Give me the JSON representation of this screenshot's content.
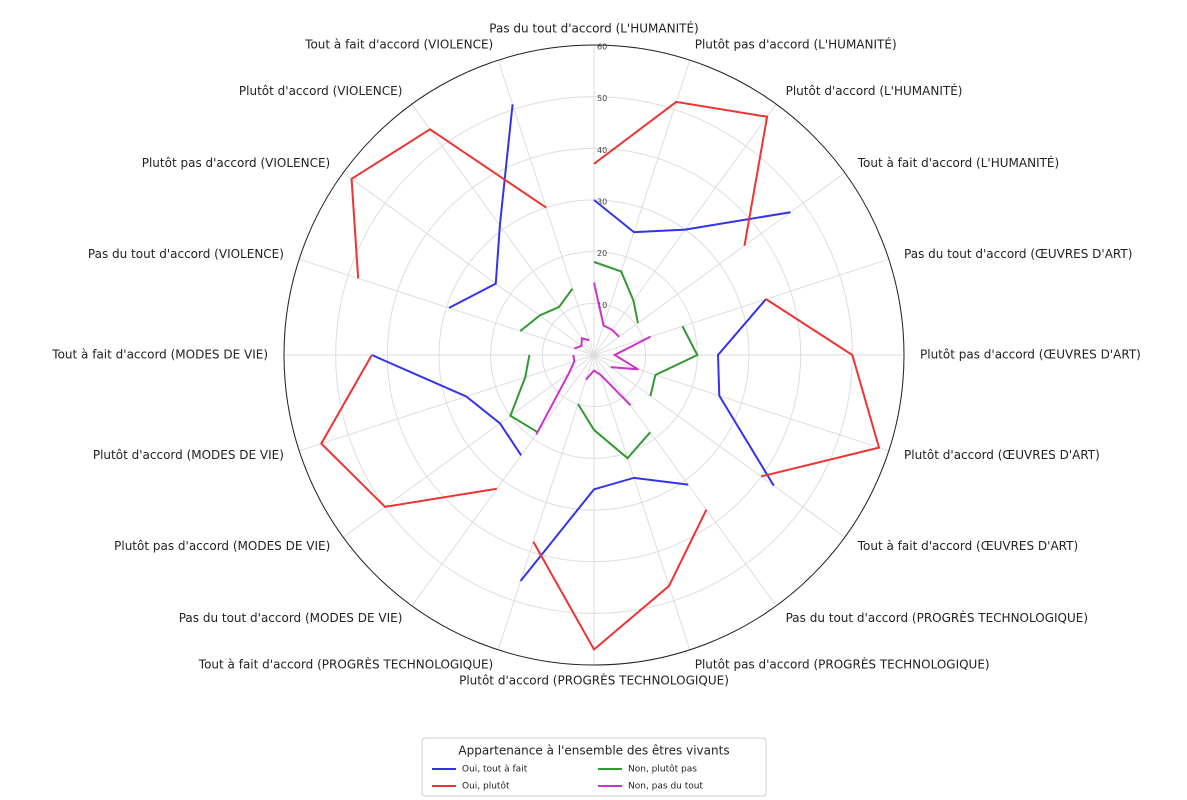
{
  "chart_data": {
    "type": "radar",
    "categories": [
      "Pas du tout d'accord (L'HUMANITÉ)",
      "Plutôt pas d'accord (L'HUMANITÉ)",
      "Plutôt d'accord (L'HUMANITÉ)",
      "Tout à fait d'accord (L'HUMANITÉ)",
      "Pas du tout d'accord (ŒUVRES D'ART)",
      "Plutôt pas d'accord (ŒUVRES D'ART)",
      "Plutôt d'accord (ŒUVRES D'ART)",
      "Tout à fait d'accord (ŒUVRES D'ART)",
      "Pas du tout d'accord (PROGRÈS TECHNOLOGIQUE)",
      "Plutôt pas d'accord (PROGRÈS TECHNOLOGIQUE)",
      "Plutôt d'accord (PROGRÈS TECHNOLOGIQUE)",
      "Tout à fait d'accord (PROGRÈS TECHNOLOGIQUE)",
      "Pas du tout d'accord (MODES DE VIE)",
      "Plutôt pas d'accord (MODES DE VIE)",
      "Plutôt d'accord (MODES DE VIE)",
      "Tout à fait d'accord (MODES DE VIE)",
      "Pas du tout d'accord (VIOLENCE)",
      "Plutôt pas d'accord (VIOLENCE)",
      "Plutôt d'accord (VIOLENCE)",
      "Tout à fait d'accord (VIOLENCE)"
    ],
    "series": [
      {
        "name": "Oui, tout à fait",
        "color": "#3333ee",
        "values": [
          30,
          25,
          30,
          47,
          35,
          24,
          25.5,
          43,
          31,
          25,
          26,
          46,
          24,
          22.5,
          26,
          43,
          29.5,
          23.5,
          31,
          51
        ]
      },
      {
        "name": "Oui, plutôt",
        "color": "#ee3333",
        "values": [
          37,
          51.5,
          57,
          36,
          35,
          50,
          58,
          40,
          37,
          47,
          57,
          38,
          32,
          50,
          55.5,
          43,
          48,
          58,
          54,
          30
        ]
      },
      {
        "name": "Non, plutôt pas",
        "color": "#339933",
        "values": [
          18,
          17,
          13,
          10.5,
          18,
          20,
          12.5,
          13.5,
          18.5,
          21,
          14.5,
          10,
          18.5,
          20,
          14,
          12.5,
          15,
          13,
          11.5,
          13.5
        ]
      },
      {
        "name": "Non, pas du tout",
        "color": "#cc33cc",
        "values": [
          14,
          6,
          6,
          6,
          11.5,
          4,
          9,
          4,
          12,
          4,
          3,
          5,
          19,
          6,
          4,
          4,
          4,
          3,
          4,
          3
        ]
      }
    ],
    "ylim": [
      0,
      60
    ],
    "yticks": [
      10,
      20,
      30,
      40,
      50,
      60
    ],
    "legend_title": "Appartenance à l'ensemble des êtres vivants",
    "legend": "lower center"
  }
}
